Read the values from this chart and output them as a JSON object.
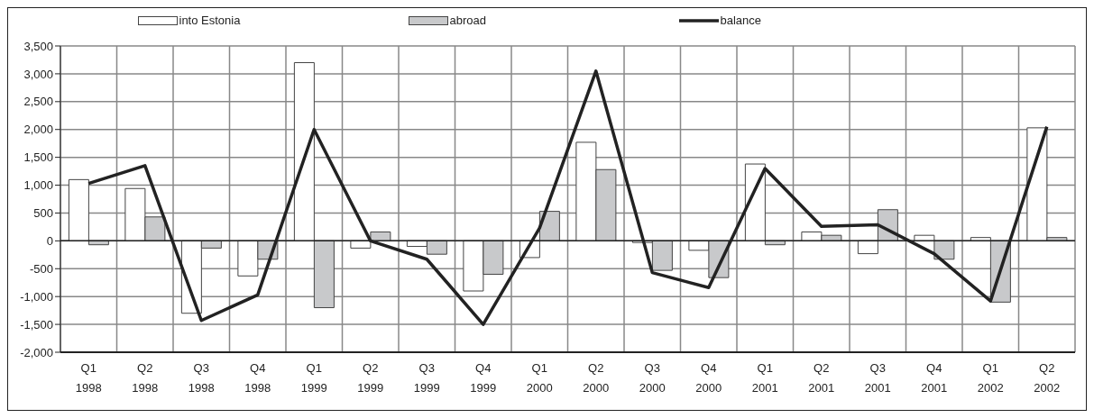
{
  "chart_data": {
    "type": "bar",
    "categories": [
      "Q1 1998",
      "Q2 1998",
      "Q3 1998",
      "Q4 1998",
      "Q1 1999",
      "Q2 1999",
      "Q3 1999",
      "Q4 1999",
      "Q1 2000",
      "Q2 2000",
      "Q3 2000",
      "Q4 2000",
      "Q1 2001",
      "Q2 2001",
      "Q3 2001",
      "Q4 2001",
      "Q1 2002",
      "Q2 2002"
    ],
    "series": [
      {
        "name": "into Estonia",
        "color": "#ffffff",
        "values": [
          1100,
          940,
          -1300,
          -630,
          3200,
          -130,
          -100,
          -900,
          -300,
          1770,
          -30,
          -170,
          1380,
          160,
          -230,
          100,
          60,
          2030
        ]
      },
      {
        "name": "abroad",
        "color": "#c8c9cb",
        "values": [
          -70,
          430,
          -130,
          -330,
          -1200,
          160,
          -240,
          -600,
          530,
          1280,
          -530,
          -660,
          -70,
          100,
          560,
          -330,
          -1100,
          60
        ]
      },
      {
        "name": "balance",
        "type": "line",
        "color": "#222222",
        "values": [
          1030,
          1350,
          -1430,
          -970,
          2000,
          0,
          -330,
          -1500,
          230,
          3050,
          -570,
          -840,
          1300,
          260,
          290,
          -230,
          -1080,
          2050
        ]
      }
    ],
    "ylim": [
      -2000,
      3500
    ],
    "yticks": [
      {
        "value": -2000,
        "label": "-2,000"
      },
      {
        "value": -1500,
        "label": "-1,500"
      },
      {
        "value": -1000,
        "label": "-1,000"
      },
      -500,
      0,
      500,
      {
        "value": 1000,
        "label": "1,000"
      },
      {
        "value": 1500,
        "label": "1,500"
      },
      {
        "value": 2000,
        "label": "2,000"
      },
      {
        "value": 2500,
        "label": "2,500"
      },
      {
        "value": 3000,
        "label": "3,000"
      },
      {
        "value": 3500,
        "label": "3,500"
      }
    ],
    "grid": true,
    "legend": "top",
    "marker": "none"
  }
}
